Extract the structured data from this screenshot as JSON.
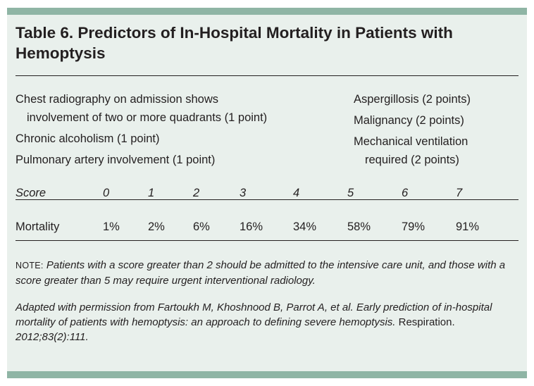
{
  "title": "Table 6. Predictors of In-Hospital Mortality in Patients with Hemoptysis",
  "criteria_left": [
    "Chest radiography on admission shows",
    "involvement of two or more quadrants (1 point)",
    "Chronic alcoholism (1 point)",
    "Pulmonary artery involvement (1 point)"
  ],
  "criteria_right": [
    "Aspergillosis (2 points)",
    "Malignancy (2 points)",
    "Mechanical ventilation",
    "required (2 points)"
  ],
  "table": {
    "score_label": "Score",
    "scores": [
      "0",
      "1",
      "2",
      "3",
      "4",
      "5",
      "6",
      "7"
    ],
    "mortality_label": "Mortality",
    "mortality": [
      "1%",
      "2%",
      "6%",
      "16%",
      "34%",
      "58%",
      "79%",
      "91%"
    ]
  },
  "note": {
    "prefix": "NOTE:",
    "text": "Patients with a score greater than 2 should be admitted to the intensive care unit, and those with a score greater than 5 may require urgent interventional radiology."
  },
  "source": {
    "text": "Adapted with permission from Fartoukh M, Khoshnood B, Parrot A, et al. Early prediction of in-hospital mortality of patients with hemoptysis: an approach to defining severe hemoptysis.",
    "journal": "Respiration.",
    "citation": "2012;83(2):111."
  }
}
